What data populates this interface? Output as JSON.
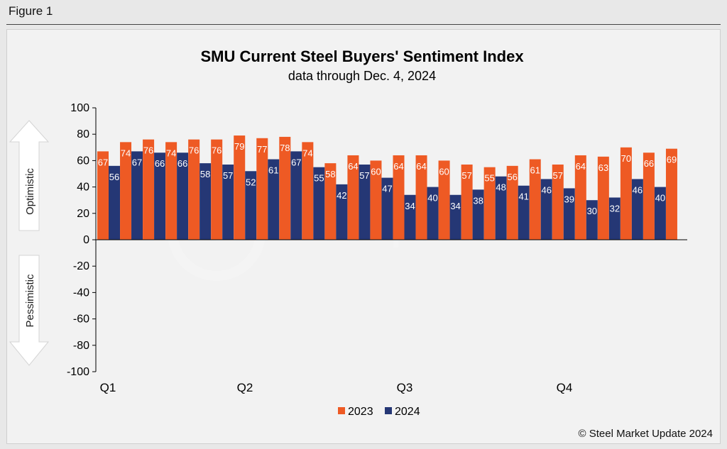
{
  "figure_label": "Figure 1",
  "copyright": "© Steel Market Update 2024",
  "watermark": "Steel Market Update",
  "arrows": {
    "up": "Optimistic",
    "down": "Pessimistic"
  },
  "colors": {
    "2023": "#ee5a24",
    "2024": "#253775",
    "axis": "#000000"
  },
  "chart_data": {
    "type": "bar",
    "title": "SMU Current Steel Buyers' Sentiment Index",
    "subtitle": "data through Dec. 4, 2024",
    "ylim": [
      -100,
      100
    ],
    "yticks": [
      100,
      80,
      60,
      40,
      20,
      0,
      -20,
      -40,
      -60,
      -80,
      -100
    ],
    "quarter_labels": [
      "Q1",
      "Q2",
      "Q3",
      "Q4"
    ],
    "legend_position": "bottom",
    "grid": false,
    "series": [
      {
        "name": "2023",
        "values": [
          67,
          74,
          76,
          74,
          76,
          76,
          79,
          77,
          78,
          74,
          58,
          64,
          60,
          64,
          64,
          60,
          57,
          55,
          56,
          61,
          57,
          64,
          63,
          70,
          66,
          69
        ]
      },
      {
        "name": "2024",
        "values": [
          56,
          67,
          66,
          66,
          58,
          57,
          52,
          61,
          67,
          55,
          42,
          57,
          47,
          34,
          40,
          34,
          38,
          48,
          41,
          46,
          39,
          30,
          32,
          46,
          40,
          null
        ]
      }
    ]
  }
}
